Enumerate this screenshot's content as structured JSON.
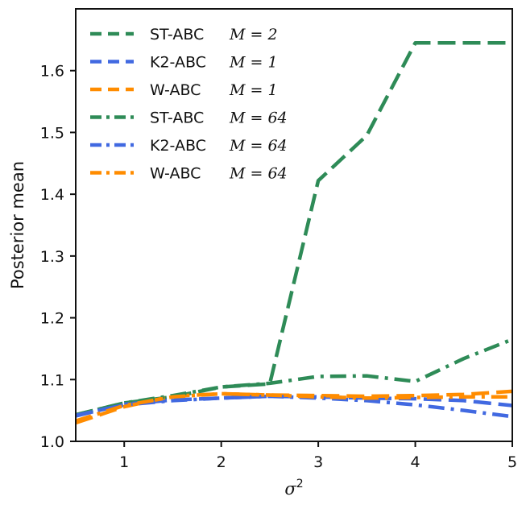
{
  "chart_data": {
    "type": "line",
    "title": "",
    "xlabel": "σ",
    "xlabel_superscript": "2",
    "ylabel": "Posterior mean",
    "xlim": [
      0.5,
      5.0
    ],
    "ylim": [
      1.0,
      1.7
    ],
    "xticks": [
      "1",
      "2",
      "3",
      "4",
      "5"
    ],
    "yticks": [
      "1.0",
      "1.1",
      "1.2",
      "1.3",
      "1.4",
      "1.5",
      "1.6"
    ],
    "legend_position": "top-left",
    "x": [
      0.5,
      1.0,
      1.5,
      2.0,
      2.5,
      3.0,
      3.5,
      4.0,
      4.5,
      5.0
    ],
    "series": [
      {
        "name": "ST-ABC",
        "m_label": "M = 2",
        "color": "#2e8b57",
        "style": "dashed",
        "values": [
          1.043,
          1.062,
          1.072,
          1.088,
          1.093,
          1.422,
          1.495,
          1.645,
          1.645,
          1.645
        ]
      },
      {
        "name": "K2-ABC",
        "m_label": "M = 1",
        "color": "#4169e1",
        "style": "dashed",
        "values": [
          1.041,
          1.06,
          1.067,
          1.07,
          1.073,
          1.072,
          1.07,
          1.069,
          1.066,
          1.058
        ]
      },
      {
        "name": "W-ABC",
        "m_label": "M = 1",
        "color": "#ff8c00",
        "style": "dashed",
        "values": [
          1.03,
          1.056,
          1.073,
          1.077,
          1.075,
          1.074,
          1.073,
          1.074,
          1.076,
          1.081
        ]
      },
      {
        "name": "ST-ABC",
        "m_label": "M = 64",
        "color": "#2e8b57",
        "style": "dashdot",
        "values": [
          1.043,
          1.062,
          1.074,
          1.088,
          1.094,
          1.105,
          1.106,
          1.097,
          1.134,
          1.165
        ]
      },
      {
        "name": "K2-ABC",
        "m_label": "M = 64",
        "color": "#4169e1",
        "style": "dashdot",
        "values": [
          1.042,
          1.059,
          1.066,
          1.07,
          1.073,
          1.07,
          1.066,
          1.059,
          1.05,
          1.04
        ]
      },
      {
        "name": "W-ABC",
        "m_label": "M = 64",
        "color": "#ff8c00",
        "style": "dashdot",
        "values": [
          1.033,
          1.058,
          1.072,
          1.077,
          1.075,
          1.072,
          1.07,
          1.071,
          1.072,
          1.072
        ]
      }
    ]
  }
}
